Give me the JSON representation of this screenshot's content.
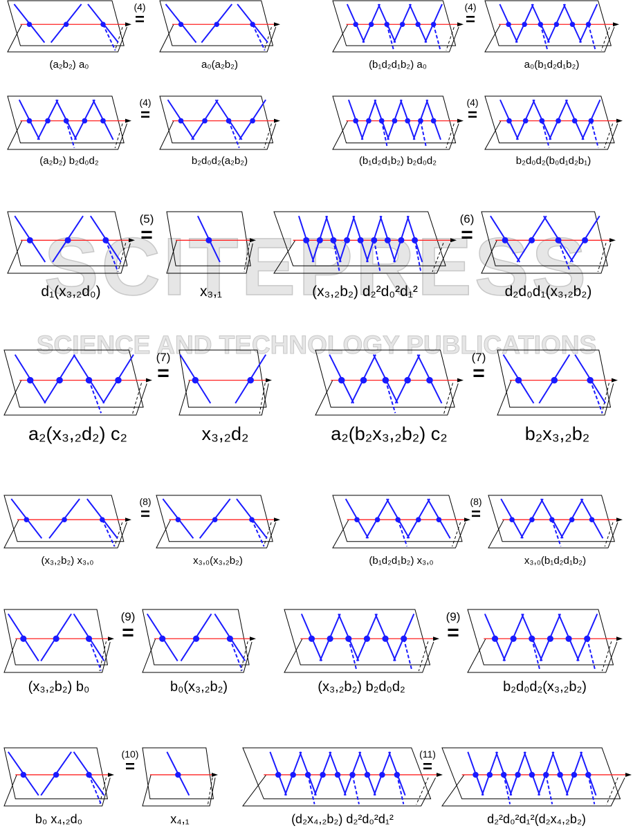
{
  "watermark": {
    "line1": "SCITEPRESS",
    "line2": "SCIENCE AND TECHNOLOGY PUBLICATIONS"
  },
  "colors": {
    "strand": "#1a1aff",
    "axis": "#ff2020",
    "frame": "#000000"
  },
  "equals_sign": "=",
  "equations": [
    {
      "rule": "(4)",
      "left": "(a₂b₂) a₀",
      "right": "a₀(a₂b₂)"
    },
    {
      "rule": "(4)",
      "left": "(b₁d₂d₁b₂) a₀",
      "right": "a₀(b₁d₂d₁b₂)"
    },
    {
      "rule": "(4)",
      "left": "(a₂b₂) b₂d₀d₂",
      "right": "b₂d₀d₂(a₂b₂)"
    },
    {
      "rule": "(4)",
      "left": "(b₁d₂d₁b₂) b₂d₀d₂",
      "right": "b₂d₀d₂(b₀d₁d₂b₁)"
    },
    {
      "rule": "(5)",
      "left": "d₁(x₃,₂d₀)",
      "right": "x₃,₁"
    },
    {
      "rule": "(6)",
      "left": "(x₃,₂b₂) d₂²d₀²d₁²",
      "right": "d₂d₀d₁(x₃,₂b₂)"
    },
    {
      "rule": "(7)",
      "left": "a₂(x₃,₂d₂) c₂",
      "right": "x₃,₂d₂"
    },
    {
      "rule": "(7)",
      "left": "a₂(b₂x₃,₂b₂) c₂",
      "right": "b₂x₃,₂b₂"
    },
    {
      "rule": "(8)",
      "left": "(x₃,₂b₂) x₃,₀",
      "right": "x₃,₀(x₃,₂b₂)"
    },
    {
      "rule": "(8)",
      "left": "(b₁d₂d₁b₂) x₃,₀",
      "right": "x₃,₀(b₁d₂d₁b₂)"
    },
    {
      "rule": "(9)",
      "left": "(x₃,₂b₂) b₀",
      "right": "b₀(x₃,₂b₂)"
    },
    {
      "rule": "(9)",
      "left": "(x₃,₂b₂) b₂d₀d₂",
      "right": "b₂d₀d₂(x₃,₂b₂)"
    },
    {
      "rule": "(10)",
      "left": "b₀ x₄,₂d₀",
      "right": "x₄,₁"
    },
    {
      "rule": "(11)",
      "left": "(d₂x₄,₂b₂) d₂²d₀²d₁²",
      "right": "d₂²d₀²d₁²(d₂x₄,₂b₂)"
    }
  ]
}
